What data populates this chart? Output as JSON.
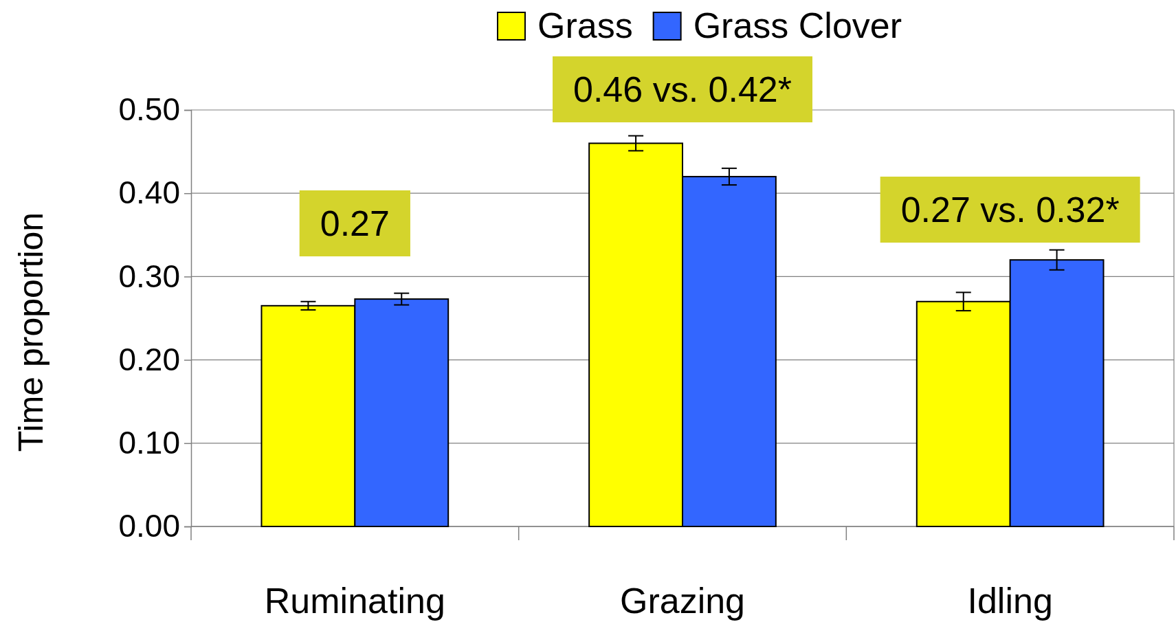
{
  "chart_data": {
    "type": "bar",
    "ylabel": "Time proportion",
    "categories": [
      "Ruminating",
      "Grazing",
      "Idling"
    ],
    "series": [
      {
        "name": "Grass",
        "color": "#ffff00",
        "values": [
          0.265,
          0.46,
          0.27
        ],
        "errors": [
          0.005,
          0.009,
          0.011
        ]
      },
      {
        "name": "Grass Clover",
        "color": "#3366ff",
        "values": [
          0.273,
          0.42,
          0.32
        ],
        "errors": [
          0.007,
          0.01,
          0.012
        ]
      }
    ],
    "ylim": [
      0,
      0.5
    ],
    "yticks": [
      {
        "value": 0,
        "label": "0.00"
      },
      {
        "value": 0.1,
        "label": "0.10"
      },
      {
        "value": 0.2,
        "label": "0.20"
      },
      {
        "value": 0.3,
        "label": "0.30"
      },
      {
        "value": 0.4,
        "label": "0.40"
      },
      {
        "value": 0.5,
        "label": "0.50"
      }
    ],
    "grid": "y",
    "legend": "top",
    "annotations": [
      "0.27",
      "0.46 vs. 0.42*",
      "0.27 vs. 0.32*"
    ]
  }
}
